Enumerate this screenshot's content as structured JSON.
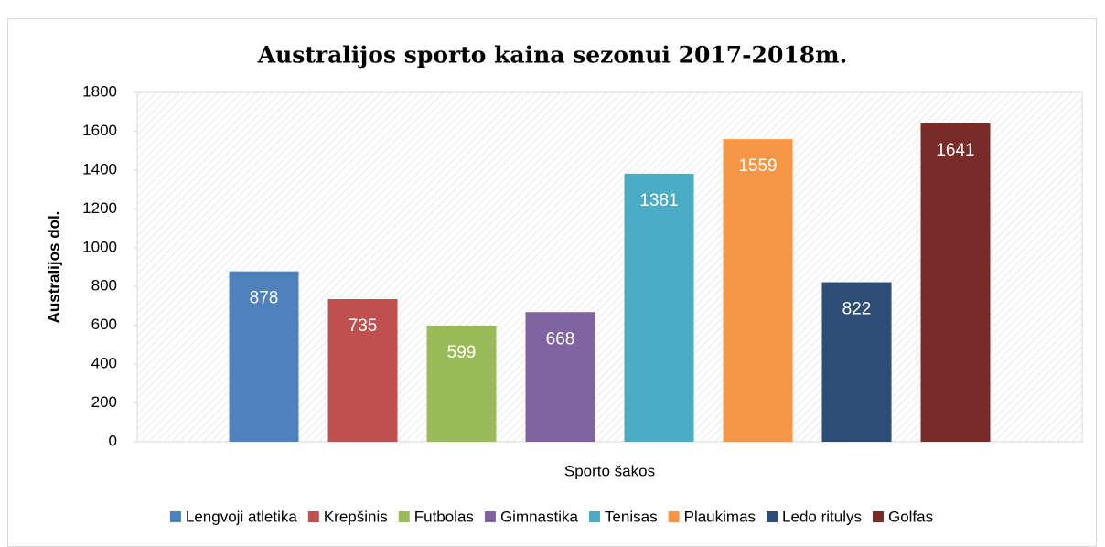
{
  "chart_data": {
    "type": "bar",
    "title": "Australijos sporto  kaina sezonui 2017-2018m.",
    "ylabel": "Australijos dol.",
    "categories": [
      "Sporto šakos"
    ],
    "series": [
      {
        "name": "Lengvoji atletika",
        "color": "#4f81bd",
        "values": [
          878
        ]
      },
      {
        "name": "Krepšinis",
        "color": "#c0504d",
        "values": [
          735
        ]
      },
      {
        "name": "Futbolas",
        "color": "#9bbb59",
        "values": [
          599
        ]
      },
      {
        "name": "Gimnastika",
        "color": "#8064a2",
        "values": [
          668
        ]
      },
      {
        "name": "Tenisas",
        "color": "#4bacc6",
        "values": [
          1381
        ]
      },
      {
        "name": "Plaukimas",
        "color": "#f79646",
        "values": [
          1559
        ]
      },
      {
        "name": "Ledo ritulys",
        "color": "#2c4d75",
        "values": [
          822
        ]
      },
      {
        "name": "Golfas",
        "color": "#772c2a",
        "values": [
          1641
        ]
      }
    ],
    "ylim": [
      0,
      1800
    ],
    "yticks": [
      0,
      200,
      400,
      600,
      800,
      1000,
      1200,
      1400,
      1600,
      1800
    ],
    "legend": "bottom"
  }
}
